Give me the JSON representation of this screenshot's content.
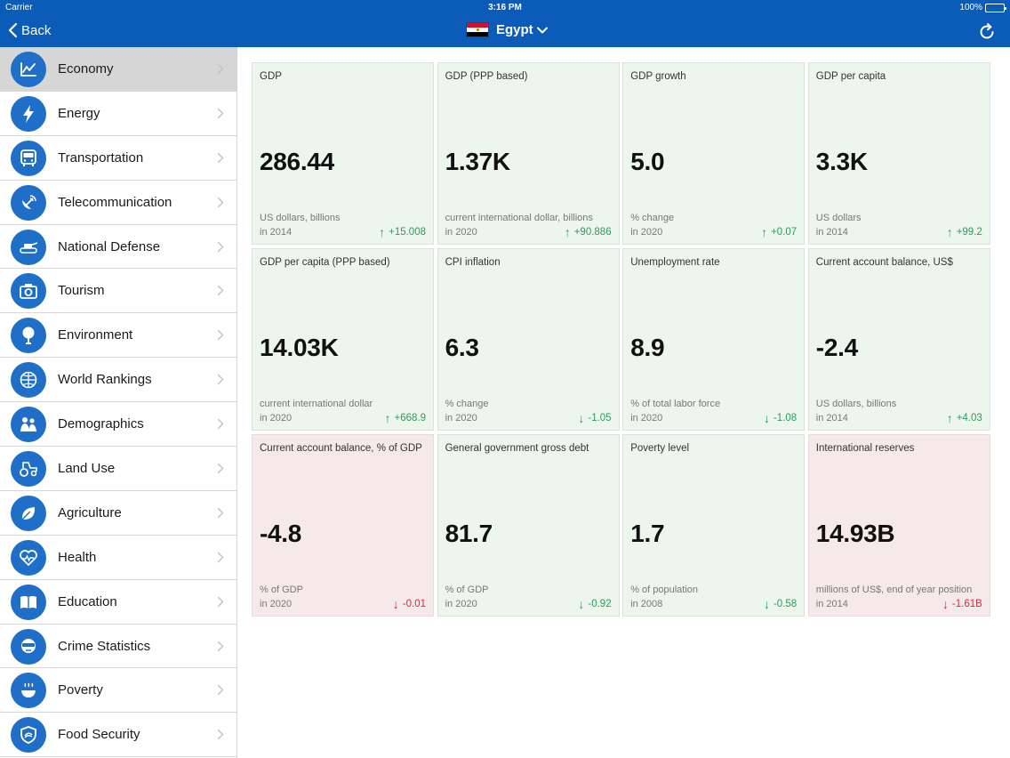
{
  "status": {
    "carrier": "Carrier",
    "time": "3:16 PM",
    "battery": "100%"
  },
  "nav": {
    "back_label": "Back",
    "country": "Egypt"
  },
  "colors": {
    "header": "#0b5cb8",
    "icon_bg": "#1f6fc8",
    "up": "#2e9a5e",
    "down": "#d8283c"
  },
  "sidebar": {
    "items": [
      {
        "label": "Economy",
        "icon": "chart-icon",
        "active": true
      },
      {
        "label": "Energy",
        "icon": "lightning-icon"
      },
      {
        "label": "Transportation",
        "icon": "bus-icon"
      },
      {
        "label": "Telecommunication",
        "icon": "satellite-icon"
      },
      {
        "label": "National Defense",
        "icon": "tank-icon"
      },
      {
        "label": "Tourism",
        "icon": "camera-icon"
      },
      {
        "label": "Environment",
        "icon": "tree-icon"
      },
      {
        "label": "World Rankings",
        "icon": "globe-icon"
      },
      {
        "label": "Demographics",
        "icon": "people-icon"
      },
      {
        "label": "Land Use",
        "icon": "tractor-icon"
      },
      {
        "label": "Agriculture",
        "icon": "leaf-icon"
      },
      {
        "label": "Health",
        "icon": "heart-icon"
      },
      {
        "label": "Education",
        "icon": "book-icon"
      },
      {
        "label": "Crime Statistics",
        "icon": "mask-icon"
      },
      {
        "label": "Poverty",
        "icon": "bowl-icon"
      },
      {
        "label": "Food Security",
        "icon": "shield-icon"
      }
    ]
  },
  "cards": [
    {
      "title": "GDP",
      "value": "286.44",
      "unit": "US dollars, billions",
      "year": "in 2014",
      "arrow": "↑",
      "delta": "+15.008",
      "trend": "up",
      "tone": "pos"
    },
    {
      "title": "GDP (PPP based)",
      "value": "1.37K",
      "unit": "current international dollar, billions",
      "year": "in 2020",
      "arrow": "↑",
      "delta": "+90.886",
      "trend": "up",
      "tone": "pos"
    },
    {
      "title": "GDP growth",
      "value": "5.0",
      "unit": "% change",
      "year": "in 2020",
      "arrow": "↑",
      "delta": "+0.07",
      "trend": "up",
      "tone": "pos"
    },
    {
      "title": "GDP per capita",
      "value": "3.3K",
      "unit": "US dollars",
      "year": "in 2014",
      "arrow": "↑",
      "delta": "+99.2",
      "trend": "up",
      "tone": "pos"
    },
    {
      "title": "GDP per capita (PPP based)",
      "value": "14.03K",
      "unit": "current international dollar",
      "year": "in 2020",
      "arrow": "↑",
      "delta": "+668.9",
      "trend": "up",
      "tone": "pos"
    },
    {
      "title": "CPI inflation",
      "value": "6.3",
      "unit": "% change",
      "year": "in 2020",
      "arrow": "↓",
      "delta": "-1.05",
      "trend": "down-green",
      "tone": "pos"
    },
    {
      "title": "Unemployment rate",
      "value": "8.9",
      "unit": "% of total labor force",
      "year": "in 2020",
      "arrow": "↓",
      "delta": "-1.08",
      "trend": "down-green",
      "tone": "pos"
    },
    {
      "title": "Current account balance, US$",
      "value": "-2.4",
      "unit": "US dollars, billions",
      "year": "in 2014",
      "arrow": "↑",
      "delta": "+4.03",
      "trend": "up",
      "tone": "pos"
    },
    {
      "title": "Current account balance, % of GDP",
      "value": "-4.8",
      "unit": "% of GDP",
      "year": "in 2020",
      "arrow": "↓",
      "delta": "-0.01",
      "trend": "down-red",
      "tone": "neg"
    },
    {
      "title": "General government gross debt",
      "value": "81.7",
      "unit": "% of GDP",
      "year": "in 2020",
      "arrow": "↓",
      "delta": "-0.92",
      "trend": "down-green",
      "tone": "pos"
    },
    {
      "title": "Poverty level",
      "value": "1.7",
      "unit": "% of population",
      "year": "in 2008",
      "arrow": "↓",
      "delta": "-0.58",
      "trend": "down-green",
      "tone": "pos"
    },
    {
      "title": "International reserves",
      "value": "14.93B",
      "unit": "millions of US$, end of year position",
      "year": "in 2014",
      "arrow": "↓",
      "delta": "-1.61B",
      "trend": "down-red",
      "tone": "neg"
    }
  ]
}
